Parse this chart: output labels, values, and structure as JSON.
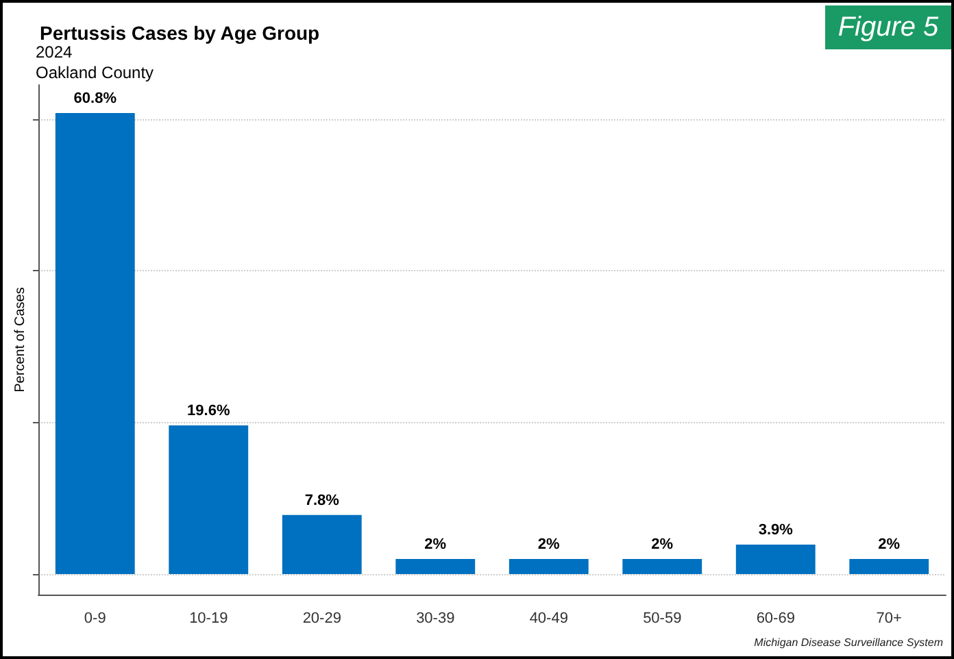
{
  "chart_data": {
    "type": "bar",
    "title": "Pertussis Cases by Age Group",
    "subtitle": "2024\nOakland County",
    "ylabel": "Percent of Cases",
    "categories": [
      "0-9",
      "10-19",
      "20-29",
      "30-39",
      "40-49",
      "50-59",
      "60-69",
      "70+"
    ],
    "values": [
      60.8,
      19.6,
      7.8,
      2,
      2,
      2,
      3.9,
      2
    ],
    "value_labels": [
      "60.8%",
      "19.6%",
      "7.8%",
      "2%",
      "2%",
      "2%",
      "3.9%",
      "2%"
    ],
    "color": "#0070c0",
    "ylim": [
      -2.7,
      64.5
    ],
    "yticks": [
      {
        "value": 0,
        "label": null
      },
      {
        "value": 20,
        "label": null
      },
      {
        "value": 40,
        "label": null
      },
      {
        "value": 60,
        "label": null
      }
    ],
    "tick_labels": "x",
    "grid": "y",
    "annotations": [
      "Figure 5",
      "Michigan Disease Surveillance System"
    ]
  }
}
